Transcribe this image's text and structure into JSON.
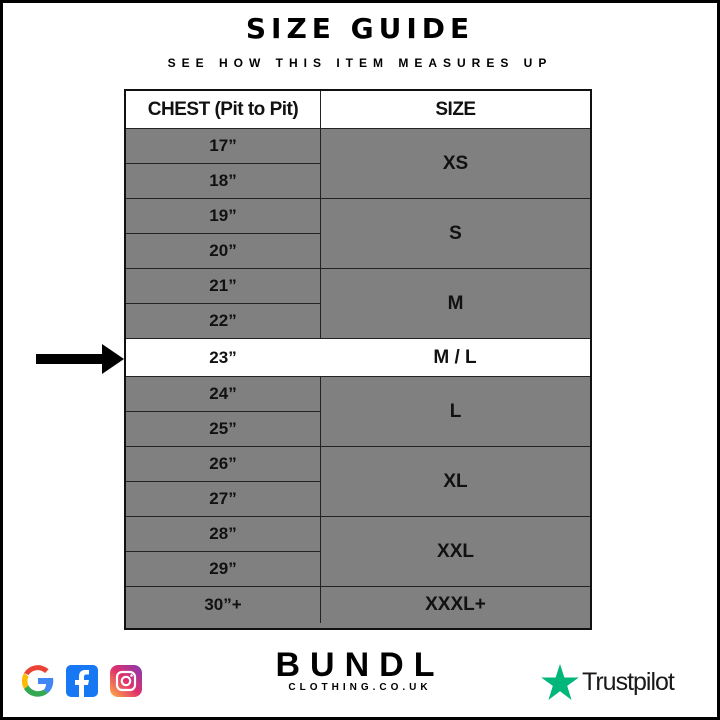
{
  "title": "SIZE GUIDE",
  "subtitle": "SEE HOW THIS ITEM MEASURES UP",
  "table": {
    "headers": [
      "CHEST (Pit to Pit)",
      "SIZE"
    ],
    "chest": [
      "17”",
      "18”",
      "19”",
      "20”",
      "21”",
      "22”",
      "23”",
      "24”",
      "25”",
      "26”",
      "27”",
      "28”",
      "29”",
      "30”+"
    ],
    "sizes": [
      "XS",
      "S",
      "M",
      "M / L",
      "L",
      "XL",
      "XXL",
      "XXXL+"
    ],
    "highlighted_row": "23”",
    "colors": {
      "row_fill": "#808080",
      "highlight_fill": "#ffffff"
    }
  },
  "footer": {
    "social_icons": [
      "google-icon",
      "facebook-icon",
      "instagram-icon"
    ],
    "brand": "BUNDL",
    "brand_sub": "CLOTHING.CO.UK",
    "trustpilot": "Trustpilot",
    "trustpilot_color": "#00b67a"
  }
}
